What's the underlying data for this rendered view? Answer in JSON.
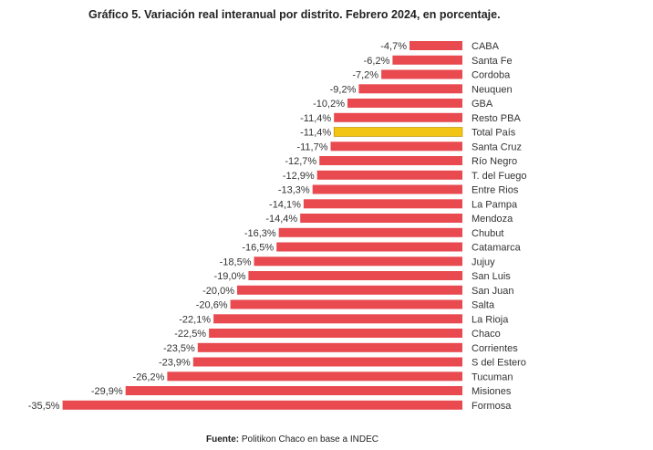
{
  "chart_data": {
    "type": "bar",
    "orientation": "horizontal",
    "title": "Gráfico 5. Variación real interanual por distrito. Febrero 2024, en porcentaje.",
    "source_prefix": "Fuente:",
    "source_text": "Politikon Chaco en base a INDEC",
    "colors": {
      "default": "#e84a4f",
      "highlight": "#f2c414"
    },
    "highlight_category": "Total País",
    "categories": [
      "CABA",
      "Santa Fe",
      "Cordoba",
      "Neuquen",
      "GBA",
      "Resto PBA",
      "Total País",
      "Santa Cruz",
      "Río Negro",
      "T. del Fuego",
      "Entre Rios",
      "La Pampa",
      "Mendoza",
      "Chubut",
      "Catamarca",
      "Jujuy",
      "San Luis",
      "San Juan",
      "Salta",
      "La Rioja",
      "Chaco",
      "Corrientes",
      "S del Estero",
      "Tucuman",
      "Misiones",
      "Formosa"
    ],
    "values": [
      -4.7,
      -6.2,
      -7.2,
      -9.2,
      -10.2,
      -11.4,
      -11.4,
      -11.7,
      -12.7,
      -12.9,
      -13.3,
      -14.1,
      -14.4,
      -16.3,
      -16.5,
      -18.5,
      -19.0,
      -20.0,
      -20.6,
      -22.1,
      -22.5,
      -23.5,
      -23.9,
      -26.2,
      -29.9,
      -35.5
    ],
    "value_labels": [
      "-4,7%",
      "-6,2%",
      "-7,2%",
      "-9,2%",
      "-10,2%",
      "-11,4%",
      "-11,4%",
      "-11,7%",
      "-12,7%",
      "-12,9%",
      "-13,3%",
      "-14,1%",
      "-14,4%",
      "-16,3%",
      "-16,5%",
      "-18,5%",
      "-19,0%",
      "-20,0%",
      "-20,6%",
      "-22,1%",
      "-22,5%",
      "-23,5%",
      "-23,9%",
      "-26,2%",
      "-29,9%",
      "-35,5%"
    ]
  }
}
